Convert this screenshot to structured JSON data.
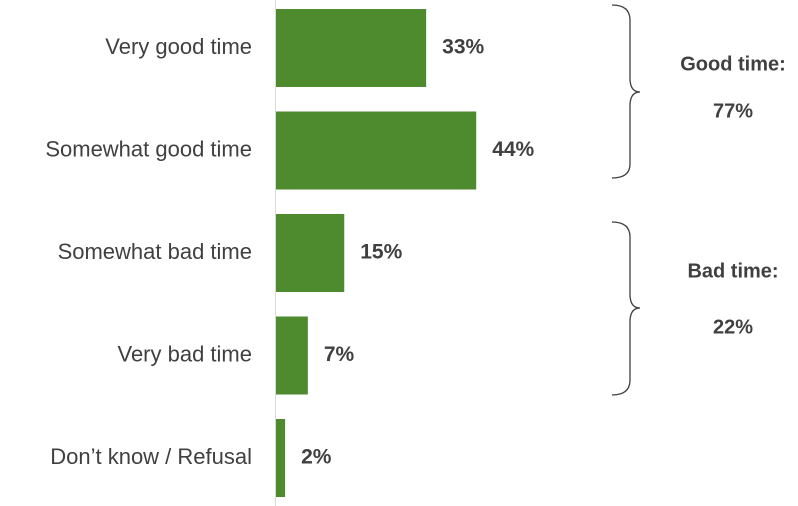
{
  "chart_data": {
    "type": "hbar",
    "categories": [
      "Very good time",
      "Somewhat good time",
      "Somewhat bad time",
      "Very bad time",
      "Don’t know / Refusal"
    ],
    "values": [
      33,
      44,
      15,
      7,
      2
    ],
    "value_labels": [
      "33%",
      "44%",
      "15%",
      "7%",
      "2%"
    ],
    "color": "#4e8a2e",
    "annotations": [
      {
        "text": "Good time:",
        "total": "77%"
      },
      {
        "text": "Bad time:",
        "total": "22%"
      }
    ]
  }
}
